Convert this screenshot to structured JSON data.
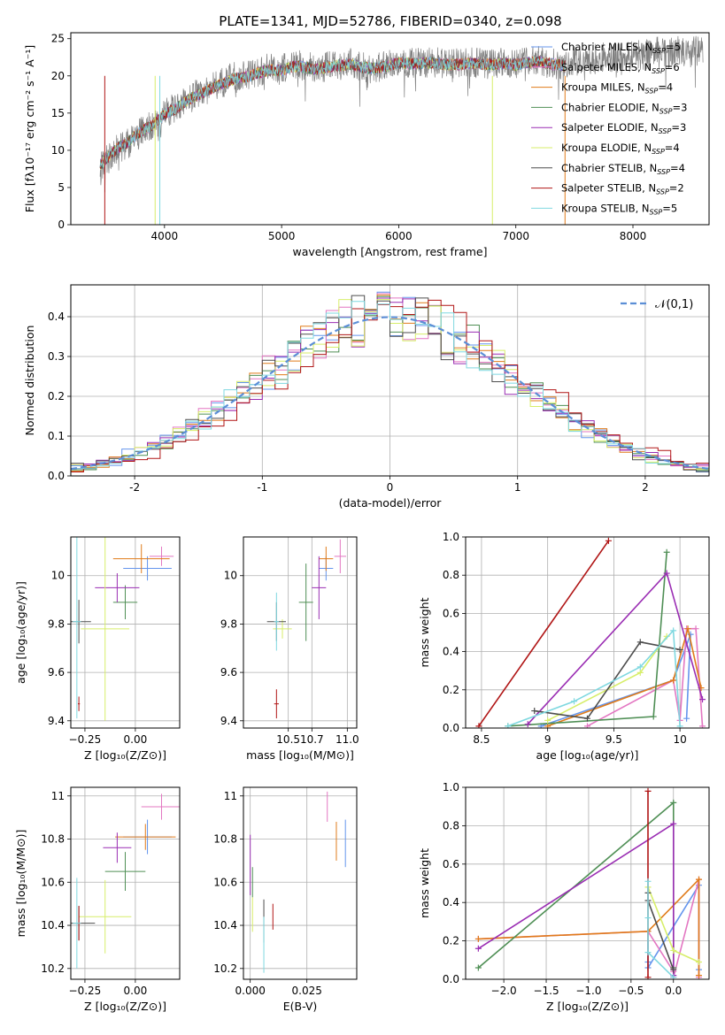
{
  "figure_title": "PLATE=1341, MJD=52786, FIBERID=0340, z=0.098",
  "colors": {
    "Chabrier MILES": "#6495ED",
    "Salpeter MILES": "#E377C2",
    "Kroupa MILES": "#E07B1A",
    "Chabrier ELODIE": "#4F8F55",
    "Salpeter ELODIE": "#9A2DB3",
    "Kroupa ELODIE": "#D7EE6A",
    "Chabrier STELIB": "#4D4D4D",
    "Salpeter STELIB": "#B01515",
    "Kroupa STELIB": "#7FD8E0"
  },
  "chart_data": [
    {
      "id": "spectrum",
      "type": "line",
      "title": "PLATE=1341, MJD=52786, FIBERID=0340, z=0.098",
      "xlabel": "wavelength [Angstrom, rest frame]",
      "ylabel": "Flux [fλ10⁻¹⁷ erg cm⁻² s⁻¹ A⁻¹]",
      "xlim": [
        3200,
        8650
      ],
      "ylim": [
        0,
        25.8
      ],
      "xticks": [
        4000,
        5000,
        6000,
        7000,
        8000
      ],
      "yticks": [
        0,
        5,
        10,
        15,
        20,
        25
      ],
      "data_color": "#808080",
      "data_x": [
        3450,
        3500,
        3600,
        3700,
        3800,
        3900,
        3950,
        4000,
        4100,
        4200,
        4300,
        4400,
        4500,
        4600,
        4700,
        4800,
        4900,
        5000,
        5100,
        5200,
        5300,
        5400,
        5500,
        5600,
        5700,
        5800,
        5900,
        6000,
        6100,
        6200,
        6300,
        6400,
        6500,
        6600,
        6700,
        6800,
        6900,
        7000,
        7100,
        7200,
        7300,
        7400,
        7500,
        7600,
        7700,
        7800,
        7900,
        8000,
        8100,
        8200,
        8300,
        8400,
        8500,
        8600
      ],
      "data_y": [
        7.5,
        8.5,
        10.2,
        11.0,
        12.5,
        13.5,
        13.0,
        14.8,
        15.8,
        17.0,
        17.6,
        18.5,
        19.2,
        19.8,
        20.0,
        20.6,
        21.0,
        20.8,
        21.6,
        21.4,
        21.0,
        21.3,
        21.5,
        21.8,
        21.2,
        21.0,
        21.4,
        22.0,
        21.7,
        21.8,
        21.9,
        21.5,
        21.6,
        21.8,
        21.7,
        21.6,
        21.8,
        21.6,
        21.9,
        22.0,
        21.7,
        21.5,
        21.9,
        22.2,
        22.3,
        22.6,
        22.4,
        23.0,
        22.8,
        23.2,
        23.0,
        23.4,
        23.2,
        23.5
      ],
      "legend_position": "right",
      "series": [
        {
          "name": "Chabrier MILES, N_SSP=5",
          "color": "#6495ED"
        },
        {
          "name": "Salpeter MILES, N_SSP=6",
          "color": "#E377C2"
        },
        {
          "name": "Kroupa MILES, N_SSP=4",
          "color": "#E07B1A"
        },
        {
          "name": "Chabrier ELODIE, N_SSP=3",
          "color": "#4F8F55"
        },
        {
          "name": "Salpeter ELODIE, N_SSP=3",
          "color": "#9A2DB3"
        },
        {
          "name": "Kroupa ELODIE, N_SSP=4",
          "color": "#D7EE6A"
        },
        {
          "name": "Chabrier STELIB, N_SSP=4",
          "color": "#4D4D4D"
        },
        {
          "name": "Salpeter STELIB, N_SSP=2",
          "color": "#B01515"
        },
        {
          "name": "Kroupa STELIB, N_SSP=5",
          "color": "#7FD8E0"
        }
      ],
      "legend_label_parts": [
        {
          "pre": "Chabrier MILES, N",
          "sub": "SSP",
          "post": "=5"
        },
        {
          "pre": "Salpeter MILES, N",
          "sub": "SSP",
          "post": "=6"
        },
        {
          "pre": "Kroupa MILES, N",
          "sub": "SSP",
          "post": "=4"
        },
        {
          "pre": "Chabrier ELODIE, N",
          "sub": "SSP",
          "post": "=3"
        },
        {
          "pre": "Salpeter ELODIE, N",
          "sub": "SSP",
          "post": "=3"
        },
        {
          "pre": "Kroupa ELODIE, N",
          "sub": "SSP",
          "post": "=4"
        },
        {
          "pre": "Chabrier STELIB, N",
          "sub": "SSP",
          "post": "=4"
        },
        {
          "pre": "Salpeter STELIB, N",
          "sub": "SSP",
          "post": "=2"
        },
        {
          "pre": "Kroupa STELIB, N",
          "sub": "SSP",
          "post": "=5"
        }
      ],
      "model_x": [
        3450,
        3500,
        3600,
        3700,
        3800,
        3900,
        4000,
        4100,
        4200,
        4300,
        4400,
        4500,
        4600,
        4700,
        4800,
        4900,
        5000,
        5100,
        5200,
        5300,
        5400,
        5500,
        5600,
        5700,
        5800,
        5900,
        6000,
        6100,
        6200,
        6300,
        6400,
        6500,
        6600,
        6700,
        6800,
        6900,
        7000,
        7100,
        7200,
        7300,
        7400
      ],
      "model_y": [
        8.0,
        8.8,
        10.3,
        11.2,
        12.6,
        13.4,
        14.8,
        15.6,
        16.8,
        17.5,
        18.3,
        19.0,
        19.6,
        19.9,
        20.4,
        20.8,
        20.7,
        21.3,
        21.2,
        20.9,
        21.2,
        21.4,
        21.6,
        21.1,
        21.0,
        21.3,
        21.8,
        21.6,
        21.7,
        21.8,
        21.5,
        21.5,
        21.7,
        21.6,
        21.5,
        21.7,
        21.5,
        21.8,
        21.9,
        21.6,
        21.4
      ],
      "model_ends": [
        7420,
        7420,
        7420,
        7420,
        7420,
        7420,
        7420,
        7420,
        7420
      ],
      "dropouts": [
        {
          "x": 3490,
          "series": 7
        },
        {
          "x": 3920,
          "series": 5
        },
        {
          "x": 3960,
          "series": 8
        },
        {
          "x": 6800,
          "series": 5
        },
        {
          "x": 7420,
          "series": 2
        }
      ]
    },
    {
      "id": "residuals",
      "type": "histogram",
      "xlabel": "(data-model)/error",
      "ylabel": "Normed distribution",
      "xlim": [
        -2.5,
        2.5
      ],
      "ylim": [
        0,
        0.48
      ],
      "xticks": [
        -2,
        -1,
        0,
        1,
        2
      ],
      "yticks": [
        0.0,
        0.1,
        0.2,
        0.3,
        0.4
      ],
      "grid": true,
      "normal_curve": {
        "label": "𝒩(0,1)",
        "color": "#5B8ED6",
        "legend_position": "top-right"
      },
      "bin_width": 0.1,
      "base_shape": "gaussian"
    },
    {
      "id": "age_vs_Z",
      "type": "errorbar",
      "xlabel": "Z [log₁₀(Z/Z⊙)]",
      "ylabel": "age  [log₁₀(age/yr)]",
      "xlim": [
        -0.32,
        0.22
      ],
      "ylim": [
        9.37,
        10.16
      ],
      "xticks": [
        -0.25,
        0.0
      ],
      "xticklabels": [
        "−0.25",
        "0.00"
      ],
      "yticks": [
        9.4,
        9.6,
        9.8,
        10.0
      ],
      "grid": true,
      "points": [
        {
          "s": 0,
          "x": 0.06,
          "y": 10.03,
          "xe": 0.12,
          "ye": 0.05
        },
        {
          "s": 1,
          "x": 0.13,
          "y": 10.08,
          "xe": 0.06,
          "ye": 0.04
        },
        {
          "s": 2,
          "x": 0.03,
          "y": 10.07,
          "xe": 0.14,
          "ye": 0.06
        },
        {
          "s": 3,
          "x": -0.05,
          "y": 9.89,
          "xe": 0.06,
          "ye": 0.07
        },
        {
          "s": 4,
          "x": -0.09,
          "y": 9.95,
          "xe": 0.11,
          "ye": 0.06
        },
        {
          "s": 5,
          "x": -0.15,
          "y": 9.78,
          "xe": 0.12,
          "ye": 0.38
        },
        {
          "s": 6,
          "x": -0.28,
          "y": 9.81,
          "xe": 0.06,
          "ye": 0.09
        },
        {
          "s": 7,
          "x": -0.28,
          "y": 9.47,
          "xe": 0.005,
          "ye": 0.03
        },
        {
          "s": 8,
          "x": -0.29,
          "y": 9.81,
          "xe": 0.02,
          "ye": 0.4
        }
      ]
    },
    {
      "id": "age_vs_mass",
      "type": "errorbar",
      "xlabel": "mass [log₁₀(M/M⊙)]",
      "ylabel": "",
      "xlim": [
        10.12,
        11.08
      ],
      "ylim": [
        9.37,
        10.16
      ],
      "xticks": [
        10.5,
        10.7,
        11.0
      ],
      "xticklabels": [
        "10.5",
        "10.7",
        "11.0"
      ],
      "yticks": [
        9.4,
        9.6,
        9.8,
        10.0
      ],
      "grid": true,
      "points": [
        {
          "s": 0,
          "x": 10.82,
          "y": 10.03,
          "xe": 0.06,
          "ye": 0.05
        },
        {
          "s": 1,
          "x": 10.94,
          "y": 10.08,
          "xe": 0.05,
          "ye": 0.07
        },
        {
          "s": 2,
          "x": 10.82,
          "y": 10.07,
          "xe": 0.06,
          "ye": 0.05
        },
        {
          "s": 3,
          "x": 10.65,
          "y": 9.89,
          "xe": 0.06,
          "ye": 0.16
        },
        {
          "s": 4,
          "x": 10.76,
          "y": 9.95,
          "xe": 0.06,
          "ye": 0.13
        },
        {
          "s": 5,
          "x": 10.45,
          "y": 9.78,
          "xe": 0.08,
          "ye": 0.04
        },
        {
          "s": 6,
          "x": 10.4,
          "y": 9.81,
          "xe": 0.08,
          "ye": 0.08
        },
        {
          "s": 7,
          "x": 10.4,
          "y": 9.47,
          "xe": 0.02,
          "ye": 0.06
        },
        {
          "s": 8,
          "x": 10.4,
          "y": 9.81,
          "xe": 0.02,
          "ye": 0.12
        }
      ]
    },
    {
      "id": "weight_vs_age",
      "type": "line",
      "xlabel": "age  [log₁₀(age/yr)]",
      "ylabel": "mass weight",
      "xlim": [
        8.38,
        10.22
      ],
      "ylim": [
        0,
        1.0
      ],
      "xticks": [
        8.5,
        9.0,
        9.5,
        10.0
      ],
      "yticks": [
        0.0,
        0.2,
        0.4,
        0.6,
        0.8,
        1.0
      ],
      "grid": true,
      "series": [
        {
          "s": 0,
          "x": [
            8.95,
            9.95,
            10.08,
            10.05
          ],
          "y": [
            0.01,
            0.25,
            0.49,
            0.05
          ]
        },
        {
          "s": 1,
          "x": [
            9.3,
            9.95,
            10.0,
            10.05,
            10.12,
            10.17
          ],
          "y": [
            0.01,
            0.25,
            0.04,
            0.52,
            0.52,
            0.01
          ]
        },
        {
          "s": 2,
          "x": [
            9.0,
            9.95,
            10.06,
            10.16
          ],
          "y": [
            0.01,
            0.25,
            0.52,
            0.21
          ]
        },
        {
          "s": 3,
          "x": [
            8.7,
            9.8,
            9.9
          ],
          "y": [
            0.01,
            0.06,
            0.92
          ]
        },
        {
          "s": 4,
          "x": [
            8.85,
            9.9,
            10.17
          ],
          "y": [
            0.02,
            0.81,
            0.15
          ]
        },
        {
          "s": 5,
          "x": [
            9.0,
            9.7,
            9.9
          ],
          "y": [
            0.04,
            0.29,
            0.48
          ]
        },
        {
          "s": 6,
          "x": [
            8.9,
            9.3,
            9.7,
            10.0
          ],
          "y": [
            0.09,
            0.05,
            0.45,
            0.41
          ]
        },
        {
          "s": 7,
          "x": [
            8.48,
            9.46
          ],
          "y": [
            0.01,
            0.98
          ]
        },
        {
          "s": 8,
          "x": [
            8.7,
            9.2,
            9.7,
            9.95,
            10.0
          ],
          "y": [
            0.01,
            0.14,
            0.32,
            0.51,
            0.01
          ]
        }
      ]
    },
    {
      "id": "mass_vs_Z",
      "type": "errorbar",
      "xlabel": "Z [log₁₀(Z/Z⊙)]",
      "ylabel": "mass [log₁₀(M/M⊙)]",
      "xlim": [
        -0.32,
        0.22
      ],
      "ylim": [
        10.15,
        11.04
      ],
      "xticks": [
        -0.25,
        0.0
      ],
      "xticklabels": [
        "−0.25",
        "0.00"
      ],
      "yticks": [
        10.2,
        10.4,
        10.6,
        10.8,
        11.0
      ],
      "grid": true,
      "points": [
        {
          "s": 0,
          "x": 0.06,
          "y": 10.81,
          "xe": 0.12,
          "ye": 0.08
        },
        {
          "s": 1,
          "x": 0.13,
          "y": 10.95,
          "xe": 0.1,
          "ye": 0.06
        },
        {
          "s": 2,
          "x": 0.05,
          "y": 10.81,
          "xe": 0.15,
          "ye": 0.06
        },
        {
          "s": 3,
          "x": -0.05,
          "y": 10.65,
          "xe": 0.1,
          "ye": 0.09
        },
        {
          "s": 4,
          "x": -0.09,
          "y": 10.76,
          "xe": 0.07,
          "ye": 0.07
        },
        {
          "s": 5,
          "x": -0.15,
          "y": 10.44,
          "xe": 0.13,
          "ye": 0.17
        },
        {
          "s": 6,
          "x": -0.28,
          "y": 10.41,
          "xe": 0.08,
          "ye": 0.08
        },
        {
          "s": 7,
          "x": -0.28,
          "y": 10.41,
          "xe": 0.01,
          "ye": 0.08
        },
        {
          "s": 8,
          "x": -0.29,
          "y": 10.41,
          "xe": 0.02,
          "ye": 0.21
        }
      ]
    },
    {
      "id": "mass_vs_ebv",
      "type": "errorbar",
      "xlabel": "E(B-V)",
      "ylabel": "",
      "xlim": [
        -0.003,
        0.047
      ],
      "ylim": [
        10.15,
        11.04
      ],
      "xticks": [
        0.0,
        0.025
      ],
      "xticklabels": [
        "0.000",
        "0.025"
      ],
      "yticks": [
        10.2,
        10.4,
        10.6,
        10.8,
        11.0
      ],
      "grid": true,
      "points": [
        {
          "s": 0,
          "x": 0.042,
          "y": 10.78,
          "xe": 0.0,
          "ye": 0.11
        },
        {
          "s": 1,
          "x": 0.034,
          "y": 10.95,
          "xe": 0.0,
          "ye": 0.07
        },
        {
          "s": 2,
          "x": 0.038,
          "y": 10.79,
          "xe": 0.0,
          "ye": 0.09
        },
        {
          "s": 3,
          "x": 0.001,
          "y": 10.6,
          "xe": 0.0,
          "ye": 0.07
        },
        {
          "s": 4,
          "x": 0.0,
          "y": 10.68,
          "xe": 0.0,
          "ye": 0.14
        },
        {
          "s": 5,
          "x": 0.001,
          "y": 10.45,
          "xe": 0.0,
          "ye": 0.08
        },
        {
          "s": 6,
          "x": 0.006,
          "y": 10.42,
          "xe": 0.0,
          "ye": 0.1
        },
        {
          "s": 7,
          "x": 0.01,
          "y": 10.44,
          "xe": 0.0,
          "ye": 0.06
        },
        {
          "s": 8,
          "x": 0.006,
          "y": 10.31,
          "xe": 0.0,
          "ye": 0.13
        }
      ]
    },
    {
      "id": "weight_vs_Z",
      "type": "line",
      "xlabel": "Z [log₁₀(Z/Z⊙)]",
      "ylabel": "mass weight",
      "xlim": [
        -2.45,
        0.42
      ],
      "ylim": [
        0,
        1.0
      ],
      "xticks": [
        -2.0,
        -1.5,
        -1.0,
        -0.5,
        0.0
      ],
      "xticklabels": [
        "−2.0",
        "−1.5",
        "−1.0",
        "−0.5",
        "0.0"
      ],
      "yticks": [
        0.0,
        0.2,
        0.4,
        0.6,
        0.8,
        1.0
      ],
      "grid": true,
      "series": [
        {
          "s": 0,
          "x": [
            -0.3,
            -0.3,
            -0.3,
            0.3,
            0.3
          ],
          "y": [
            0.09,
            0.25,
            0.06,
            0.49,
            0.05
          ]
        },
        {
          "s": 1,
          "x": [
            -2.3,
            -0.3,
            0.0,
            0.0,
            0.3,
            0.3
          ],
          "y": [
            0.21,
            0.25,
            0.04,
            0.01,
            0.52,
            0.01
          ]
        },
        {
          "s": 2,
          "x": [
            -2.3,
            -0.3,
            0.3,
            0.3
          ],
          "y": [
            0.21,
            0.25,
            0.52,
            0.02
          ]
        },
        {
          "s": 3,
          "x": [
            -2.3,
            0.0,
            0.0
          ],
          "y": [
            0.06,
            0.92,
            0.06
          ]
        },
        {
          "s": 4,
          "x": [
            -2.3,
            0.0,
            0.0
          ],
          "y": [
            0.16,
            0.81,
            0.02
          ]
        },
        {
          "s": 5,
          "x": [
            -0.3,
            0.0,
            0.3
          ],
          "y": [
            0.48,
            0.15,
            0.09
          ]
        },
        {
          "s": 6,
          "x": [
            -0.3,
            -0.3,
            0.0
          ],
          "y": [
            0.45,
            0.41,
            0.05
          ]
        },
        {
          "s": 7,
          "x": [
            -0.3,
            -0.3
          ],
          "y": [
            0.01,
            0.98
          ]
        },
        {
          "s": 8,
          "x": [
            -0.3,
            -0.3,
            -0.3,
            0.0
          ],
          "y": [
            0.51,
            0.32,
            0.14,
            0.01
          ]
        }
      ]
    }
  ]
}
